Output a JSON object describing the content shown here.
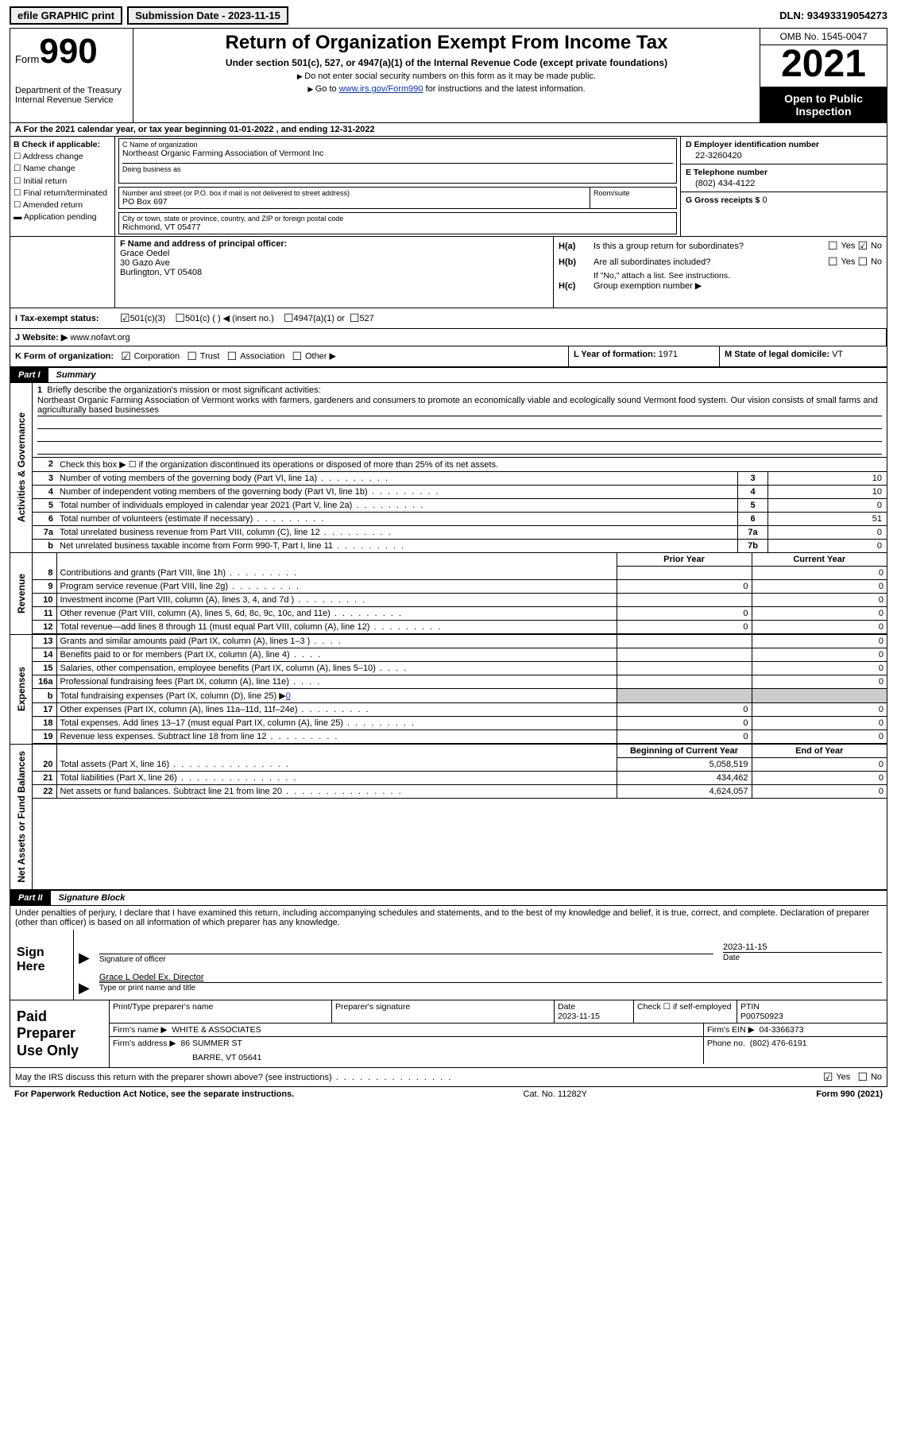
{
  "topbar": {
    "efile": "efile GRAPHIC print",
    "submission_label": "Submission Date - 2023-11-15",
    "dln_label": "DLN: 93493319054273"
  },
  "header": {
    "form_prefix": "Form",
    "form_num": "990",
    "dept": "Department of the Treasury",
    "irs": "Internal Revenue Service",
    "title": "Return of Organization Exempt From Income Tax",
    "subtitle": "Under section 501(c), 527, or 4947(a)(1) of the Internal Revenue Code (except private foundations)",
    "note1": "Do not enter social security numbers on this form as it may be made public.",
    "note2_pre": "Go to ",
    "note2_link": "www.irs.gov/Form990",
    "note2_post": " for instructions and the latest information.",
    "omb": "OMB No. 1545-0047",
    "year": "2021",
    "inspect": "Open to Public Inspection"
  },
  "row_a": "A For the 2021 calendar year, or tax year beginning 01-01-2022   , and ending 12-31-2022",
  "col_b": {
    "title": "B Check if applicable:",
    "items": [
      "Address change",
      "Name change",
      "Initial return",
      "Final return/terminated",
      "Amended return",
      "Application pending"
    ]
  },
  "col_c": {
    "name_lbl": "C Name of organization",
    "name": "Northeast Organic Farming Association of Vermont Inc",
    "dba_lbl": "Doing business as",
    "dba": "",
    "street_lbl": "Number and street (or P.O. box if mail is not delivered to street address)",
    "room_lbl": "Room/suite",
    "street": "PO Box 697",
    "city_lbl": "City or town, state or province, country, and ZIP or foreign postal code",
    "city": "Richmond, VT  05477"
  },
  "col_d": {
    "ein_lbl": "D Employer identification number",
    "ein": "22-3260420",
    "phone_lbl": "E Telephone number",
    "phone": "(802) 434-4122",
    "gross_lbl": "G Gross receipts $",
    "gross": "0"
  },
  "col_f": {
    "lbl": "F Name and address of principal officer:",
    "name": "Grace Oedel",
    "addr1": "30 Gazo Ave",
    "addr2": "Burlington, VT  05408"
  },
  "col_h": {
    "ha_lbl": "H(a)",
    "ha_txt": "Is this a group return for subordinates?",
    "hb_lbl": "H(b)",
    "hb_txt": "Are all subordinates included?",
    "hb_note": "If \"No,\" attach a list. See instructions.",
    "hc_lbl": "H(c)",
    "hc_txt": "Group exemption number ▶",
    "yes": "Yes",
    "no": "No"
  },
  "row_i": {
    "lbl": "I  Tax-exempt status:",
    "opts": [
      "501(c)(3)",
      "501(c) (  ) ◀ (insert no.)",
      "4947(a)(1) or",
      "527"
    ]
  },
  "row_j": {
    "lbl": "J  Website: ▶",
    "val": "www.nofavt.org"
  },
  "row_k": {
    "lbl": "K Form of organization:",
    "opts": [
      "Corporation",
      "Trust",
      "Association",
      "Other ▶"
    ],
    "l_lbl": "L Year of formation:",
    "l_val": "1971",
    "m_lbl": "M State of legal domicile:",
    "m_val": "VT"
  },
  "part1": {
    "label": "Part I",
    "title": "Summary",
    "tab1": "Activities & Governance",
    "tab2": "Revenue",
    "tab3": "Expenses",
    "tab4": "Net Assets or Fund Balances",
    "line1_lbl": "Briefly describe the organization's mission or most significant activities:",
    "line1_txt": "Northeast Organic Farming Association of Vermont works with farmers, gardeners and consumers to promote an economically viable and ecologically sound Vermont food system. Our vision consists of small farms and agriculturally based businesses",
    "line2": "Check this box ▶ ☐  if the organization discontinued its operations or disposed of more than 25% of its net assets.",
    "rows_gov": [
      {
        "n": "3",
        "t": "Number of voting members of the governing body (Part VI, line 1a)",
        "b": "3",
        "v": "10"
      },
      {
        "n": "4",
        "t": "Number of independent voting members of the governing body (Part VI, line 1b)",
        "b": "4",
        "v": "10"
      },
      {
        "n": "5",
        "t": "Total number of individuals employed in calendar year 2021 (Part V, line 2a)",
        "b": "5",
        "v": "0"
      },
      {
        "n": "6",
        "t": "Total number of volunteers (estimate if necessary)",
        "b": "6",
        "v": "51"
      },
      {
        "n": "7a",
        "t": "Total unrelated business revenue from Part VIII, column (C), line 12",
        "b": "7a",
        "v": "0"
      },
      {
        "n": "b",
        "t": "Net unrelated business taxable income from Form 990-T, Part I, line 11",
        "b": "7b",
        "v": "0"
      }
    ],
    "hdr_prior": "Prior Year",
    "hdr_curr": "Current Year",
    "rows_rev": [
      {
        "n": "8",
        "t": "Contributions and grants (Part VIII, line 1h)",
        "p": "",
        "c": "0"
      },
      {
        "n": "9",
        "t": "Program service revenue (Part VIII, line 2g)",
        "p": "0",
        "c": "0"
      },
      {
        "n": "10",
        "t": "Investment income (Part VIII, column (A), lines 3, 4, and 7d )",
        "p": "",
        "c": "0"
      },
      {
        "n": "11",
        "t": "Other revenue (Part VIII, column (A), lines 5, 6d, 8c, 9c, 10c, and 11e)",
        "p": "0",
        "c": "0"
      },
      {
        "n": "12",
        "t": "Total revenue—add lines 8 through 11 (must equal Part VIII, column (A), line 12)",
        "p": "0",
        "c": "0"
      }
    ],
    "rows_exp": [
      {
        "n": "13",
        "t": "Grants and similar amounts paid (Part IX, column (A), lines 1–3 )",
        "p": "",
        "c": "0"
      },
      {
        "n": "14",
        "t": "Benefits paid to or for members (Part IX, column (A), line 4)",
        "p": "",
        "c": "0"
      },
      {
        "n": "15",
        "t": "Salaries, other compensation, employee benefits (Part IX, column (A), lines 5–10)",
        "p": "",
        "c": "0"
      },
      {
        "n": "16a",
        "t": "Professional fundraising fees (Part IX, column (A), line 11e)",
        "p": "",
        "c": "0"
      }
    ],
    "row_16b_lbl": "b",
    "row_16b_txt": "Total fundraising expenses (Part IX, column (D), line 25) ▶",
    "row_16b_val": "0",
    "rows_exp2": [
      {
        "n": "17",
        "t": "Other expenses (Part IX, column (A), lines 11a–11d, 11f–24e)",
        "p": "0",
        "c": "0"
      },
      {
        "n": "18",
        "t": "Total expenses. Add lines 13–17 (must equal Part IX, column (A), line 25)",
        "p": "0",
        "c": "0"
      },
      {
        "n": "19",
        "t": "Revenue less expenses. Subtract line 18 from line 12",
        "p": "0",
        "c": "0"
      }
    ],
    "hdr_begin": "Beginning of Current Year",
    "hdr_end": "End of Year",
    "rows_net": [
      {
        "n": "20",
        "t": "Total assets (Part X, line 16)",
        "p": "5,058,519",
        "c": "0"
      },
      {
        "n": "21",
        "t": "Total liabilities (Part X, line 26)",
        "p": "434,462",
        "c": "0"
      },
      {
        "n": "22",
        "t": "Net assets or fund balances. Subtract line 21 from line 20",
        "p": "4,624,057",
        "c": "0"
      }
    ]
  },
  "part2": {
    "label": "Part II",
    "title": "Signature Block",
    "intro": "Under penalties of perjury, I declare that I have examined this return, including accompanying schedules and statements, and to the best of my knowledge and belief, it is true, correct, and complete. Declaration of preparer (other than officer) is based on all information of which preparer has any knowledge.",
    "sign_here": "Sign Here",
    "sig_officer": "Signature of officer",
    "sig_date": "Date",
    "sig_date_val": "2023-11-15",
    "sig_name": "Grace L Oedel  Ex. Director",
    "sig_name_lbl": "Type or print name and title",
    "paid_lbl": "Paid Preparer Use Only",
    "prep_name_lbl": "Print/Type preparer's name",
    "prep_sig_lbl": "Preparer's signature",
    "prep_date_lbl": "Date",
    "prep_date": "2023-11-15",
    "prep_self": "Check ☐ if self-employed",
    "ptin_lbl": "PTIN",
    "ptin": "P00750923",
    "firm_name_lbl": "Firm's name    ▶",
    "firm_name": "WHITE & ASSOCIATES",
    "firm_ein_lbl": "Firm's EIN ▶",
    "firm_ein": "04-3366373",
    "firm_addr_lbl": "Firm's address ▶",
    "firm_addr1": "86 SUMMER ST",
    "firm_addr2": "BARRE, VT  05641",
    "firm_phone_lbl": "Phone no.",
    "firm_phone": "(802) 476-6191",
    "discuss": "May the IRS discuss this return with the preparer shown above? (see instructions)",
    "yes": "Yes",
    "no": "No"
  },
  "footer": {
    "left": "For Paperwork Reduction Act Notice, see the separate instructions.",
    "mid": "Cat. No. 11282Y",
    "right": "Form 990 (2021)"
  }
}
